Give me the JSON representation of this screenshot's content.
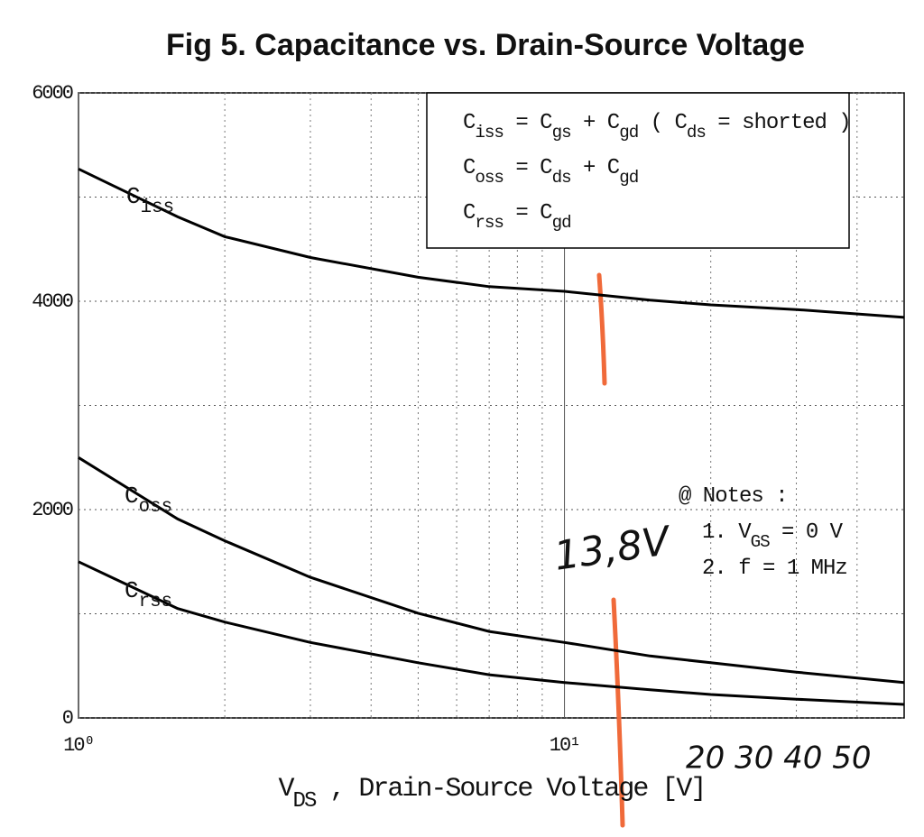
{
  "chart_data": {
    "type": "line",
    "title": "Fig 5.  Capacitance vs. Drain-Source Voltage",
    "x_label": "VDS , Drain-Source Voltage [V]",
    "x": [
      1,
      1.6,
      2,
      3,
      5,
      7,
      10,
      15,
      20,
      30,
      50
    ],
    "series": [
      {
        "name": "Ciss",
        "color": "#000000",
        "values": [
          5270,
          4810,
          4620,
          4420,
          4230,
          4140,
          4095,
          4010,
          3965,
          3920,
          3845
        ]
      },
      {
        "name": "Coss",
        "color": "#000000",
        "values": [
          2500,
          1910,
          1700,
          1350,
          1005,
          830,
          725,
          595,
          530,
          440,
          340
        ]
      },
      {
        "name": "Crss",
        "color": "#000000",
        "values": [
          1500,
          1050,
          920,
          725,
          530,
          415,
          340,
          270,
          225,
          180,
          130
        ]
      }
    ],
    "xlim": [
      1,
      50
    ],
    "ylim": [
      0,
      6000
    ],
    "log_x": true,
    "xticks": [
      {
        "value": 1,
        "label": "10⁰"
      },
      {
        "value": 10,
        "label": "10¹"
      }
    ],
    "xminorticks": [
      2,
      3,
      4,
      5,
      6,
      7,
      8,
      9,
      20,
      30,
      40
    ],
    "yticks": [
      0,
      2000,
      4000,
      6000
    ],
    "yminorticks": [
      1000,
      3000,
      5000
    ],
    "grid": true,
    "legend_box": [
      "Ciss = Cgs + Cgd ( Cds = shorted )",
      "Coss = Cds + Cgd",
      "Crss = Cgd"
    ],
    "notes": [
      "@ Notes :",
      "1. VGS = 0 V",
      "2. f = 1 MHz"
    ],
    "handwritten": [
      {
        "text": "13,8V",
        "color": "#f06a3a"
      },
      {
        "text": "20  30  40 50",
        "color": "#2a7fd6"
      }
    ]
  }
}
